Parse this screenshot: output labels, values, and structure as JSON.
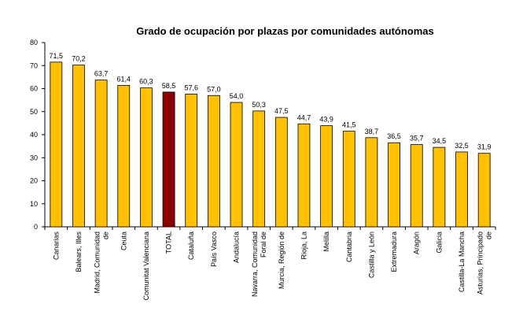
{
  "chart_data": {
    "type": "bar",
    "title": "Grado de ocupación por plazas por comunidades autónomas",
    "xlabel": "",
    "ylabel": "",
    "ylim": [
      0,
      80
    ],
    "yticks": [
      0,
      10,
      20,
      30,
      40,
      50,
      60,
      70,
      80
    ],
    "grid": false,
    "categories": [
      "Canarias",
      "Balears, Illes",
      "Madrid, Comunidad de",
      "Ceuta",
      "Comunitat Valenciana",
      "TOTAL",
      "Cataluña",
      "País Vasco",
      "Andalucía",
      "Navarra, Comunidad Foral de",
      "Murcia, Región de",
      "Rioja, La",
      "Melilla",
      "Cantabria",
      "Castilla y León",
      "Extremadura",
      "Aragón",
      "Galicia",
      "Castilla-La Mancha",
      "Asturias, Principado de"
    ],
    "category_lines": [
      [
        "Canarias"
      ],
      [
        "Balears, Illes"
      ],
      [
        "Madrid, Comunidad",
        "de"
      ],
      [
        "Ceuta"
      ],
      [
        "Comunitat Valenciana"
      ],
      [
        "TOTAL"
      ],
      [
        "Cataluña"
      ],
      [
        "País Vasco"
      ],
      [
        "Andalucía"
      ],
      [
        "Navarra, Comunidad",
        "Foral de"
      ],
      [
        "Murcia, Región de"
      ],
      [
        "Rioja, La"
      ],
      [
        "Melilla"
      ],
      [
        "Cantabria"
      ],
      [
        "Castilla y León"
      ],
      [
        "Extremadura"
      ],
      [
        "Aragón"
      ],
      [
        "Galicia"
      ],
      [
        "Castilla-La Mancha"
      ],
      [
        "Asturias, Principado",
        "de"
      ]
    ],
    "values": [
      71.5,
      70.2,
      63.7,
      61.4,
      60.3,
      58.5,
      57.6,
      57.0,
      54.0,
      50.3,
      47.5,
      44.7,
      43.9,
      41.5,
      38.7,
      36.5,
      35.7,
      34.5,
      32.5,
      31.9
    ],
    "value_labels": [
      "71,5",
      "70,2",
      "63,7",
      "61,4",
      "60,3",
      "58,5",
      "57,6",
      "57,0",
      "54,0",
      "50,3",
      "47,5",
      "44,7",
      "43,9",
      "41,5",
      "38,7",
      "36,5",
      "35,7",
      "34,5",
      "32,5",
      "31,9"
    ],
    "highlight_index": 5,
    "colors": {
      "bar": "#FFC000",
      "highlight": "#8B0000",
      "stroke": "#000000"
    }
  }
}
